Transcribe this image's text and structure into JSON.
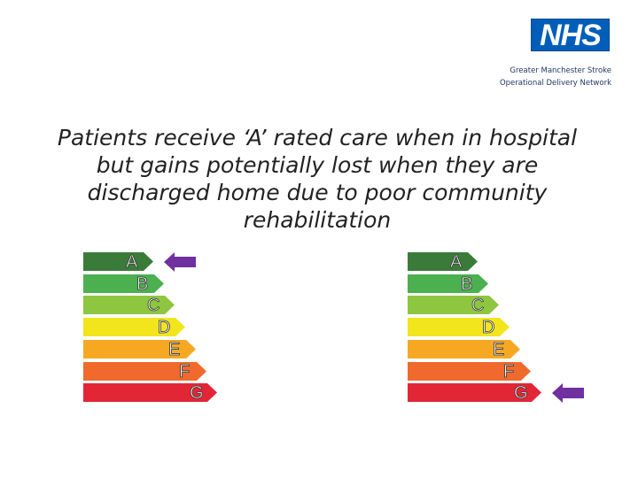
{
  "header": {
    "logo_text": "NHS",
    "org_line1": "Greater Manchester Stroke",
    "org_line2": "Operational Delivery Network"
  },
  "headline": {
    "line1": "Patients receive ‘A’ rated care when in hospital",
    "line2": "but gains potentially lost when they are",
    "line3": "discharged home due to poor community",
    "line4": "rehabilitation"
  },
  "ratings": {
    "bands": [
      {
        "letter": "A",
        "color": "#3a7b3a"
      },
      {
        "letter": "B",
        "color": "#4caf50"
      },
      {
        "letter": "C",
        "color": "#8dc63f"
      },
      {
        "letter": "D",
        "color": "#f2e51c"
      },
      {
        "letter": "E",
        "color": "#f7a823"
      },
      {
        "letter": "F",
        "color": "#ef6a2c"
      },
      {
        "letter": "G",
        "color": "#e32636"
      }
    ],
    "hospital_rating": "A",
    "community_rating": "G",
    "arrow_color": "#7030a0"
  }
}
